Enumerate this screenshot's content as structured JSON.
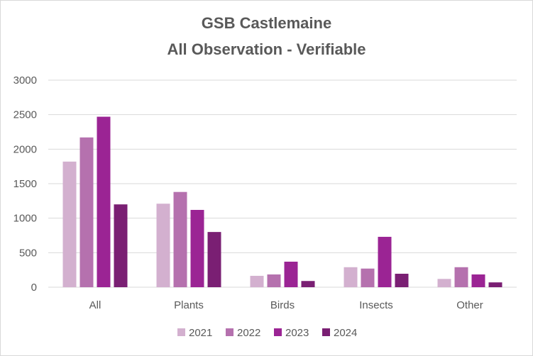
{
  "chart_data": {
    "type": "bar",
    "title": "GSB Castlemaine",
    "subtitle": "All Observation - Verifiable",
    "categories": [
      "All",
      "Plants",
      "Birds",
      "Insects",
      "Other"
    ],
    "series": [
      {
        "name": "2021",
        "color": "#d3b0cf",
        "values": [
          1820,
          1210,
          165,
          290,
          120
        ]
      },
      {
        "name": "2022",
        "color": "#b571ae",
        "values": [
          2170,
          1380,
          185,
          270,
          290
        ]
      },
      {
        "name": "2023",
        "color": "#9b2494",
        "values": [
          2470,
          1120,
          370,
          730,
          185
        ]
      },
      {
        "name": "2024",
        "color": "#7a1f73",
        "values": [
          1200,
          800,
          90,
          195,
          70
        ]
      }
    ],
    "xlabel": "",
    "ylabel": "",
    "ylim": [
      0,
      3000
    ],
    "yticks": [
      "0",
      "500",
      "1000",
      "1500",
      "2000",
      "2500",
      "3000"
    ],
    "grid": true,
    "legend_position": "bottom"
  }
}
